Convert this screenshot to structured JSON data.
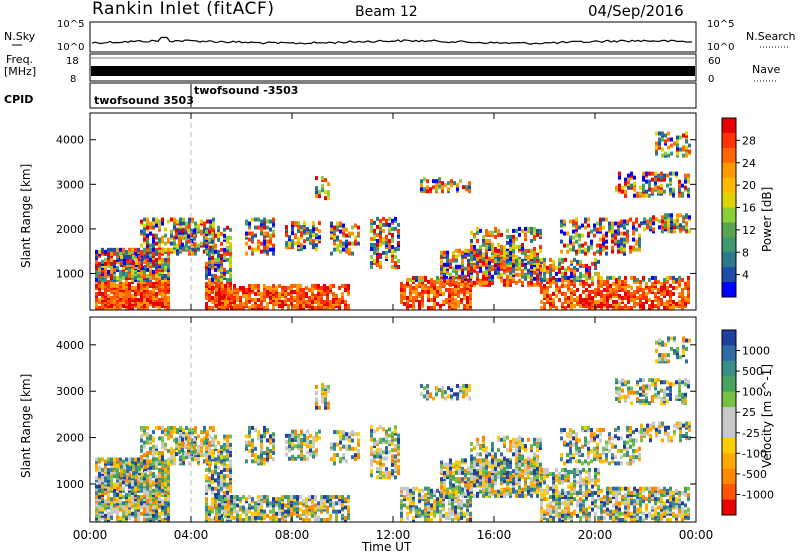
{
  "header": {
    "station": "Rankin Inlet (fitACF)",
    "beam": "Beam 12",
    "date": "04/Sep/2016"
  },
  "noise_panel": {
    "left_label": "N.Sky",
    "right_label": "N.Search",
    "tick_top": "10^5",
    "tick_bottom": "10^0",
    "right_tick_top": "10^5",
    "right_tick_bottom": "10^0"
  },
  "freq_panel": {
    "left_label_1": "Freq.",
    "left_label_2": "[MHz]",
    "tick_top": "18",
    "tick_bottom": "8",
    "right_label": "Nave",
    "right_tick_top": "60",
    "right_tick_bottom": "0"
  },
  "cpid_panel": {
    "label": "CPID",
    "entries": [
      {
        "text": "twofsound 3503"
      },
      {
        "text": "twofsound -3503"
      }
    ]
  },
  "power_panel": {
    "ylabel": "Slant Range [km]",
    "colorbar_label": "Power [dB]",
    "colorbar_ticks": [
      "28",
      "24",
      "20",
      "16",
      "12",
      "8",
      "4"
    ],
    "colorbar_colors": [
      "#e60000",
      "#ff3300",
      "#ff6600",
      "#ff9900",
      "#ffbb00",
      "#e0d400",
      "#8ccd3c",
      "#5aa550",
      "#3c9a6e",
      "#2c7a8c",
      "#1e4fa8",
      "#0000ff"
    ]
  },
  "velocity_panel": {
    "ylabel": "Slant Range [km]",
    "colorbar_label": "Velocity [m s^-1]",
    "colorbar_ticks": [
      "1000",
      "500",
      "100",
      "25",
      "-25",
      "-100",
      "-500",
      "-1000"
    ],
    "colorbar_colors": [
      "#2040a0",
      "#2f6ca5",
      "#3a8f86",
      "#4aa35c",
      "#78c043",
      "#c8c8c8",
      "#c8c8c8",
      "#ffcc00",
      "#ffaa00",
      "#ff8800",
      "#ff5500",
      "#e60000"
    ]
  },
  "xaxis": {
    "label": "Time UT",
    "ticks": [
      "00:00",
      "04:00",
      "08:00",
      "12:00",
      "16:00",
      "20:00",
      "00:00"
    ]
  },
  "chart_data": [
    {
      "type": "heatmap",
      "title": "Power",
      "ylabel": "Slant Range [km]",
      "xlabel": "Time UT",
      "x_ticks": [
        "00:00",
        "04:00",
        "08:00",
        "12:00",
        "16:00",
        "20:00",
        "00:00"
      ],
      "y_ticks": [
        1000,
        2000,
        3000,
        4000
      ],
      "colorbar": {
        "label": "Power [dB]",
        "range": [
          0,
          32
        ],
        "ticks": [
          4,
          8,
          12,
          16,
          20,
          24,
          28
        ]
      }
    },
    {
      "type": "heatmap",
      "title": "Velocity",
      "ylabel": "Slant Range [km]",
      "xlabel": "Time UT",
      "x_ticks": [
        "00:00",
        "04:00",
        "08:00",
        "12:00",
        "16:00",
        "20:00",
        "00:00"
      ],
      "y_ticks": [
        1000,
        2000,
        3000,
        4000
      ],
      "colorbar": {
        "label": "Velocity [m s^-1]",
        "ticks": [
          1000,
          500,
          100,
          25,
          -25,
          -100,
          -500,
          -1000
        ]
      }
    }
  ]
}
